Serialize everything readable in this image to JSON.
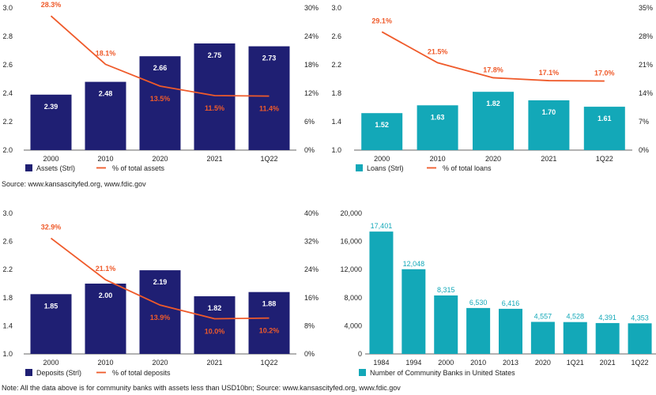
{
  "colors": {
    "navy": "#1f1f73",
    "teal": "#13a8b8",
    "orange": "#ef5a2a"
  },
  "source_top": "Source: www.kansascityfed.org, www.fdic.gov",
  "footnote": "Note: All the data above is for community banks with assets less than USD10bn; Source: www.kansascityfed.org, www.fdic.gov",
  "chart_data": [
    {
      "type": "bar",
      "id": "assets",
      "categories": [
        "2000",
        "2010",
        "2020",
        "2021",
        "1Q22"
      ],
      "series": [
        {
          "name": "Assets (Strl)",
          "type": "bar",
          "values": [
            2.39,
            2.48,
            2.66,
            2.75,
            2.73
          ],
          "labels": [
            "2.39",
            "2.48",
            "2.66",
            "2.75",
            "2.73"
          ]
        },
        {
          "name": "% of total assets",
          "type": "line",
          "values": [
            28.3,
            18.1,
            13.5,
            11.5,
            11.4
          ],
          "labels": [
            "28.3%",
            "18.1%",
            "13.5%",
            "11.5%",
            "11.4%"
          ]
        }
      ],
      "ylim": [
        2.0,
        3.0
      ],
      "yticks": [
        "3.0",
        "2.8",
        "2.6",
        "2.4",
        "2.2",
        "2.0"
      ],
      "y2lim": [
        0,
        30
      ],
      "y2ticks": [
        "30%",
        "24%",
        "18%",
        "12%",
        "6%",
        "0%"
      ]
    },
    {
      "type": "bar",
      "id": "loans",
      "categories": [
        "2000",
        "2010",
        "2020",
        "2021",
        "1Q22"
      ],
      "series": [
        {
          "name": "Loans (Strl)",
          "type": "bar",
          "values": [
            1.52,
            1.63,
            1.82,
            1.7,
            1.61
          ],
          "labels": [
            "1.52",
            "1.63",
            "1.82",
            "1.70",
            "1.61"
          ]
        },
        {
          "name": "% of total loans",
          "type": "line",
          "values": [
            29.1,
            21.5,
            17.8,
            17.1,
            17.0
          ],
          "labels": [
            "29.1%",
            "21.5%",
            "17.8%",
            "17.1%",
            "17.0%"
          ]
        }
      ],
      "ylim": [
        1.0,
        3.0
      ],
      "yticks": [
        "3.0",
        "2.6",
        "2.2",
        "1.8",
        "1.4",
        "1.0"
      ],
      "y2lim": [
        0,
        35
      ],
      "y2ticks": [
        "35%",
        "28%",
        "21%",
        "14%",
        "7%",
        "0%"
      ]
    },
    {
      "type": "bar",
      "id": "deposits",
      "categories": [
        "2000",
        "2010",
        "2020",
        "2021",
        "1Q22"
      ],
      "series": [
        {
          "name": "Deposits (Strl)",
          "type": "bar",
          "values": [
            1.85,
            2.0,
            2.19,
            1.82,
            1.88
          ],
          "labels": [
            "1.85",
            "2.00",
            "2.19",
            "1.82",
            "1.88"
          ]
        },
        {
          "name": "% of total deposits",
          "type": "line",
          "values": [
            32.9,
            21.1,
            13.9,
            10.0,
            10.2
          ],
          "labels": [
            "32.9%",
            "21.1%",
            "13.9%",
            "10.0%",
            "10.2%"
          ]
        }
      ],
      "ylim": [
        1.0,
        3.0
      ],
      "yticks": [
        "3.0",
        "2.6",
        "2.2",
        "1.8",
        "1.4",
        "1.0"
      ],
      "y2lim": [
        0,
        40
      ],
      "y2ticks": [
        "40%",
        "32%",
        "24%",
        "16%",
        "8%",
        "0%"
      ]
    },
    {
      "type": "bar",
      "id": "count",
      "categories": [
        "1984",
        "1994",
        "2000",
        "2010",
        "2013",
        "2020",
        "1Q21",
        "2021",
        "1Q22"
      ],
      "series": [
        {
          "name": "Number of Community Banks in United States",
          "type": "bar",
          "values": [
            17401,
            12048,
            8315,
            6530,
            6416,
            4557,
            4528,
            4391,
            4353
          ],
          "labels": [
            "17,401",
            "12,048",
            "8,315",
            "6,530",
            "6,416",
            "4,557",
            "4,528",
            "4,391",
            "4,353"
          ]
        }
      ],
      "ylim": [
        0,
        20000
      ],
      "yticks": [
        "20,000",
        "16,000",
        "12,000",
        "8,000",
        "4,000",
        "0"
      ]
    }
  ]
}
